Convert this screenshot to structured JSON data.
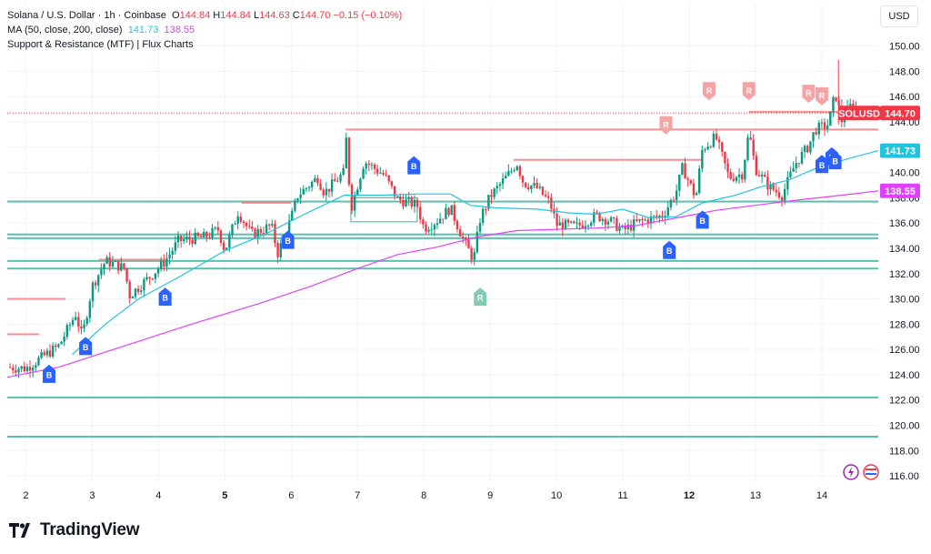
{
  "header": {
    "symbol_line": "Solana / U.S. Dollar · 1h · Coinbase",
    "o_label": "O",
    "o_value": "144.84",
    "h_label": "H",
    "h_value": "144.84",
    "l_label": "L",
    "l_value": "144.63",
    "c_label": "C",
    "c_value": "144.70",
    "change": "−0.15 (−0.10%)",
    "ma_label": "MA (50, close, 200, close)",
    "ma50_value": "141.73",
    "ma200_value": "138.55",
    "indicator_label": "Support & Resistance (MTF) | Flux Charts"
  },
  "currency_button": "USD",
  "brand": "TradingView",
  "colors": {
    "up": "#089981",
    "down": "#f23645",
    "ma50": "#22c4dd",
    "ma200": "#e040fb",
    "support": "#3ab79e",
    "resistance": "#f77c80",
    "buy": "#2962ff"
  },
  "chart_data": {
    "type": "candlestick",
    "title": "Solana / U.S. Dollar · 1h · Coinbase",
    "ylim": [
      115.5,
      151.2
    ],
    "y_ticks": [
      "116.00",
      "118.00",
      "120.00",
      "122.00",
      "124.00",
      "126.00",
      "128.00",
      "130.00",
      "132.00",
      "134.00",
      "136.00",
      "138.00",
      "140.00",
      "142.00",
      "144.00",
      "146.00",
      "148.00",
      "150.00"
    ],
    "x_ticks": [
      "2",
      "3",
      "4",
      "5",
      "6",
      "7",
      "8",
      "9",
      "10",
      "11",
      "12",
      "13",
      "14"
    ],
    "x_tick_bold": [
      "5",
      "12"
    ],
    "x_range_days": [
      1.72,
      14.85
    ],
    "close_path": [
      [
        1.72,
        124.6
      ],
      [
        2.0,
        124.5
      ],
      [
        2.5,
        126.3
      ],
      [
        2.75,
        128.8
      ],
      [
        2.85,
        127.0
      ],
      [
        3.0,
        131.0
      ],
      [
        3.2,
        133.0
      ],
      [
        3.5,
        132.4
      ],
      [
        3.55,
        130.2
      ],
      [
        3.9,
        131.9
      ],
      [
        4.1,
        133.0
      ],
      [
        4.3,
        134.6
      ],
      [
        4.7,
        134.9
      ],
      [
        4.9,
        135.5
      ],
      [
        5.0,
        133.8
      ],
      [
        5.2,
        136.9
      ],
      [
        5.4,
        135.1
      ],
      [
        5.7,
        135.8
      ],
      [
        5.8,
        133.6
      ],
      [
        6.0,
        136.4
      ],
      [
        6.1,
        138.2
      ],
      [
        6.4,
        139.6
      ],
      [
        6.5,
        138.4
      ],
      [
        6.8,
        140.0
      ],
      [
        6.82,
        143.3
      ],
      [
        6.9,
        137.1
      ],
      [
        7.1,
        140.9
      ],
      [
        7.4,
        139.8
      ],
      [
        7.6,
        137.9
      ],
      [
        7.9,
        137.4
      ],
      [
        8.0,
        135.6
      ],
      [
        8.2,
        136.2
      ],
      [
        8.4,
        137.2
      ],
      [
        8.6,
        134.6
      ],
      [
        8.75,
        133.1
      ],
      [
        8.85,
        136.4
      ],
      [
        9.0,
        138.1
      ],
      [
        9.3,
        140.0
      ],
      [
        9.4,
        140.8
      ],
      [
        9.5,
        139.2
      ],
      [
        9.7,
        138.8
      ],
      [
        9.9,
        137.6
      ],
      [
        10.0,
        135.9
      ],
      [
        10.3,
        135.7
      ],
      [
        10.6,
        136.6
      ],
      [
        10.8,
        136.2
      ],
      [
        11.0,
        135.4
      ],
      [
        11.2,
        136.0
      ],
      [
        11.6,
        136.6
      ],
      [
        11.8,
        138.4
      ],
      [
        11.9,
        140.4
      ],
      [
        12.1,
        138.0
      ],
      [
        12.2,
        141.9
      ],
      [
        12.4,
        142.8
      ],
      [
        12.6,
        139.6
      ],
      [
        12.8,
        139.9
      ],
      [
        12.9,
        143.2
      ],
      [
        13.0,
        140.3
      ],
      [
        13.2,
        138.9
      ],
      [
        13.4,
        138.2
      ],
      [
        13.6,
        140.7
      ],
      [
        13.8,
        142.1
      ],
      [
        13.9,
        143.4
      ],
      [
        14.1,
        143.8
      ],
      [
        14.2,
        146.3
      ],
      [
        14.3,
        144.1
      ],
      [
        14.45,
        145.4
      ],
      [
        14.6,
        144.7
      ]
    ],
    "ma50_path": [
      [
        2.7,
        125.6
      ],
      [
        3.2,
        128.0
      ],
      [
        3.7,
        130.0
      ],
      [
        4.3,
        131.7
      ],
      [
        5.0,
        133.8
      ],
      [
        5.6,
        135.1
      ],
      [
        6.2,
        136.7
      ],
      [
        6.8,
        138.2
      ],
      [
        7.4,
        138.2
      ],
      [
        7.9,
        138.3
      ],
      [
        8.4,
        138.3
      ],
      [
        8.7,
        137.4
      ],
      [
        9.1,
        137.2
      ],
      [
        9.7,
        137.1
      ],
      [
        10.2,
        136.8
      ],
      [
        10.6,
        136.7
      ],
      [
        11.0,
        137.1
      ],
      [
        11.4,
        136.4
      ],
      [
        11.8,
        136.5
      ],
      [
        12.2,
        137.6
      ],
      [
        12.7,
        138.2
      ],
      [
        13.1,
        138.9
      ],
      [
        13.5,
        139.4
      ],
      [
        13.9,
        140.3
      ],
      [
        14.4,
        141.1
      ],
      [
        14.85,
        141.73
      ]
    ],
    "ma200_path": [
      [
        1.72,
        123.8
      ],
      [
        2.5,
        124.6
      ],
      [
        3.5,
        126.3
      ],
      [
        4.5,
        128.0
      ],
      [
        5.5,
        129.6
      ],
      [
        6.3,
        131.0
      ],
      [
        7.0,
        132.4
      ],
      [
        7.6,
        133.5
      ],
      [
        8.2,
        134.1
      ],
      [
        8.8,
        134.9
      ],
      [
        9.4,
        135.4
      ],
      [
        10.0,
        135.5
      ],
      [
        10.6,
        135.6
      ],
      [
        11.2,
        135.8
      ],
      [
        11.8,
        136.4
      ],
      [
        12.4,
        137.0
      ],
      [
        13.0,
        137.4
      ],
      [
        13.6,
        137.8
      ],
      [
        14.3,
        138.2
      ],
      [
        14.85,
        138.55
      ]
    ],
    "support_lines": [
      {
        "price": 137.7,
        "from": 1.72,
        "to": 14.85
      },
      {
        "price": 135.1,
        "from": 1.72,
        "to": 14.85
      },
      {
        "price": 134.8,
        "from": 1.72,
        "to": 14.85
      },
      {
        "price": 133.0,
        "from": 1.72,
        "to": 14.85
      },
      {
        "price": 132.4,
        "from": 1.72,
        "to": 14.85
      },
      {
        "price": 122.2,
        "from": 1.72,
        "to": 14.85
      },
      {
        "price": 119.1,
        "from": 1.72,
        "to": 14.85
      }
    ],
    "resistance_lines": [
      {
        "price": 143.4,
        "from": 6.82,
        "to": 14.85
      },
      {
        "price": 144.8,
        "from": 12.9,
        "to": 14.85
      },
      {
        "price": 141.0,
        "from": 9.35,
        "to": 12.2
      },
      {
        "price": 133.1,
        "from": 3.1,
        "to": 4.1
      },
      {
        "price": 137.6,
        "from": 5.25,
        "to": 6.0
      },
      {
        "price": 130.0,
        "from": 1.72,
        "to": 2.6
      },
      {
        "price": 127.2,
        "from": 1.72,
        "to": 2.2
      }
    ],
    "buy_markers": [
      [
        2.35,
        124.0
      ],
      [
        2.9,
        126.2
      ],
      [
        4.1,
        130.1
      ],
      [
        5.95,
        134.6
      ],
      [
        7.85,
        140.5
      ],
      [
        11.7,
        133.8
      ],
      [
        12.2,
        136.2
      ],
      [
        14.0,
        140.6
      ],
      [
        14.15,
        141.2
      ],
      [
        14.2,
        140.9
      ]
    ],
    "support_markers": [
      [
        8.85,
        130.1
      ]
    ],
    "resistance_markers": [
      [
        11.65,
        143.8
      ],
      [
        12.3,
        146.5
      ],
      [
        12.9,
        146.5
      ],
      [
        13.8,
        146.3
      ],
      [
        14.0,
        146.1
      ]
    ],
    "last_price": {
      "label": "SOLUSD",
      "value": "144.70"
    },
    "ma50_tag": "141.73",
    "ma200_tag": "138.55"
  }
}
